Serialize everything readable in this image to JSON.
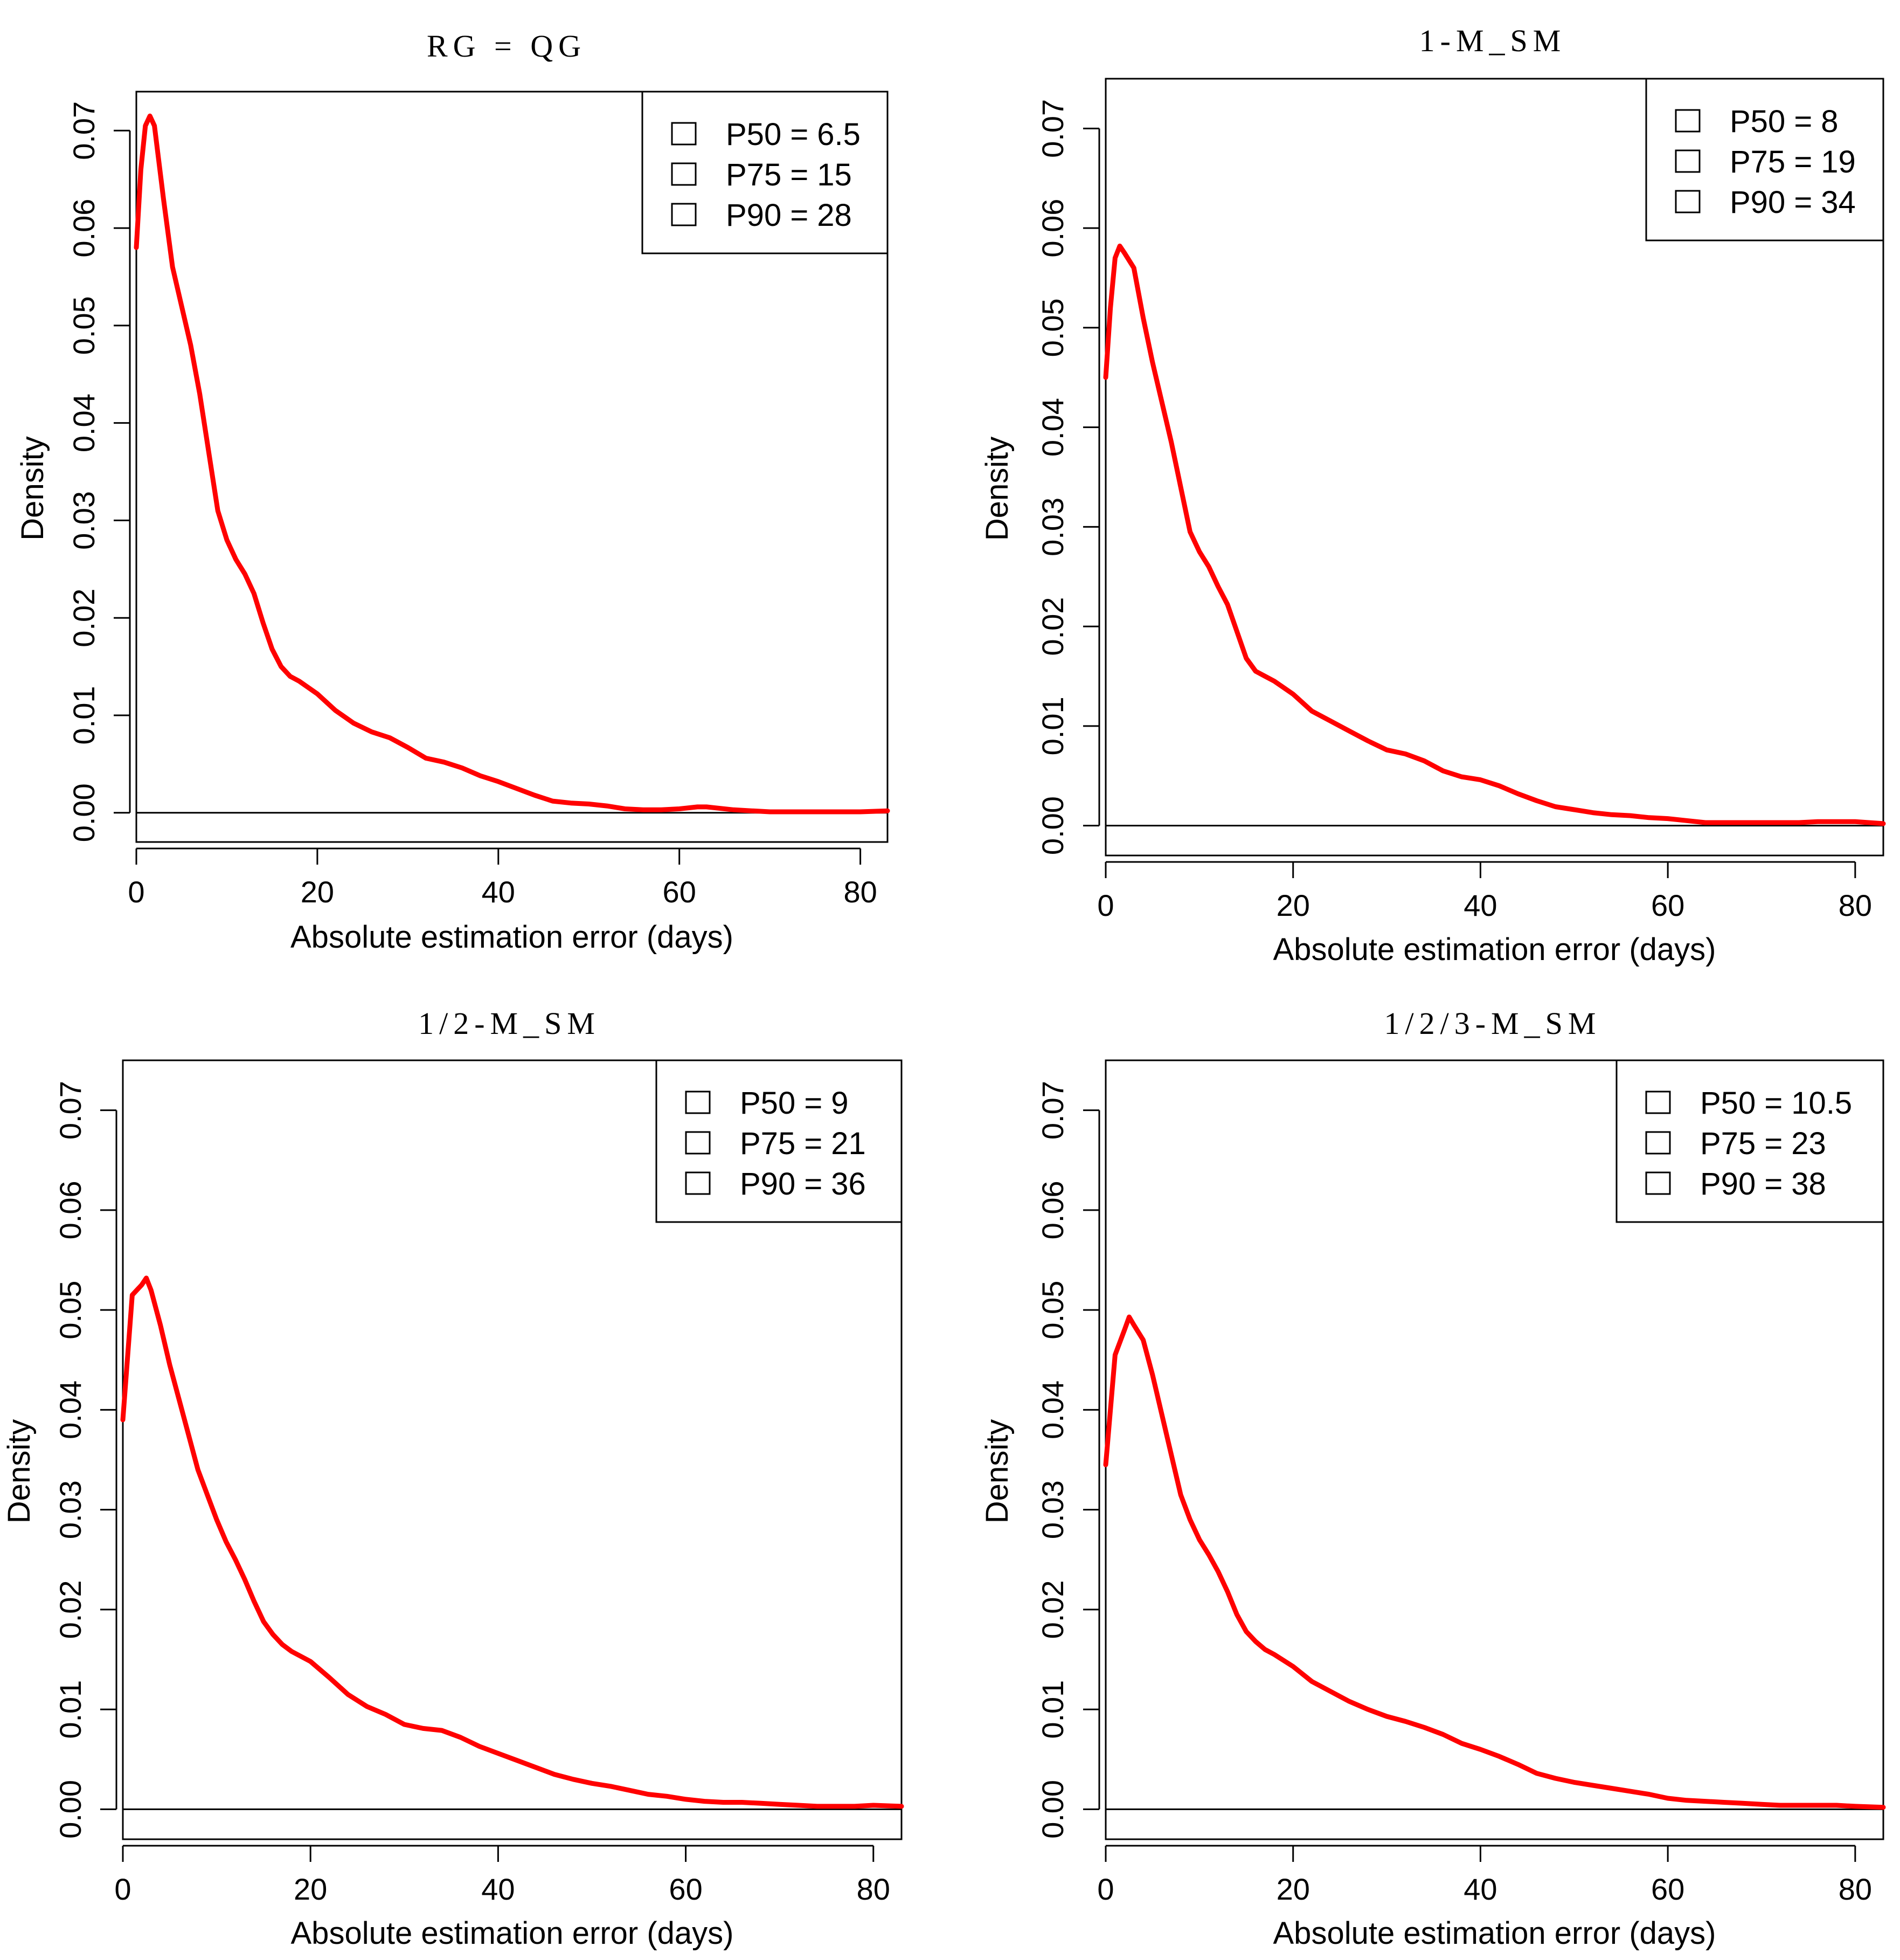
{
  "chart_data": [
    {
      "type": "line",
      "title": "RG = QG",
      "xlabel": "Absolute estimation error (days)",
      "ylabel": "Density",
      "xlim": [
        0,
        83
      ],
      "ylim": [
        -0.003,
        0.074
      ],
      "xticks": [
        "0",
        "20",
        "40",
        "60",
        "80"
      ],
      "yticks": [
        "0.00",
        "0.01",
        "0.02",
        "0.03",
        "0.04",
        "0.05",
        "0.06",
        "0.07"
      ],
      "legend_position": "top-right",
      "legend": [
        "P50 = 6.5",
        "P75 = 15",
        "P90 = 28"
      ],
      "series": [
        {
          "name": "density",
          "color": "#ff0000",
          "x": [
            0,
            0.5,
            1,
            1.5,
            2,
            3,
            4,
            5,
            6,
            7,
            8,
            9,
            10,
            11,
            12,
            13,
            14,
            15,
            16,
            17,
            18,
            20,
            22,
            24,
            26,
            28,
            30,
            32,
            34,
            36,
            38,
            40,
            42,
            44,
            46,
            48,
            50,
            52,
            54,
            56,
            58,
            60,
            62,
            63,
            64,
            66,
            68,
            70,
            72,
            74,
            76,
            78,
            80,
            83
          ],
          "y": [
            0.058,
            0.066,
            0.0705,
            0.0715,
            0.0705,
            0.063,
            0.056,
            0.052,
            0.048,
            0.043,
            0.037,
            0.031,
            0.028,
            0.026,
            0.0245,
            0.0225,
            0.0195,
            0.0168,
            0.015,
            0.014,
            0.0135,
            0.0122,
            0.0105,
            0.0092,
            0.0083,
            0.0077,
            0.0067,
            0.0056,
            0.0052,
            0.0046,
            0.0038,
            0.0032,
            0.0025,
            0.0018,
            0.0012,
            0.001,
            0.0009,
            0.0007,
            0.0004,
            0.0003,
            0.0003,
            0.0004,
            0.0006,
            0.0006,
            0.0005,
            0.0003,
            0.0002,
            0.0001,
            0.0001,
            0.0001,
            0.0001,
            0.0001,
            0.0001,
            0.0002
          ]
        }
      ]
    },
    {
      "type": "line",
      "title": "1-M_SM",
      "xlabel": "Absolute estimation error (days)",
      "ylabel": "Density",
      "xlim": [
        0,
        83
      ],
      "ylim": [
        -0.003,
        0.075
      ],
      "xticks": [
        "0",
        "20",
        "40",
        "60",
        "80"
      ],
      "yticks": [
        "0.00",
        "0.01",
        "0.02",
        "0.03",
        "0.04",
        "0.05",
        "0.06",
        "0.07"
      ],
      "legend_position": "top-right",
      "legend": [
        "P50 = 8",
        "P75 = 19",
        "P90 = 34"
      ],
      "series": [
        {
          "name": "density",
          "color": "#ff0000",
          "x": [
            0,
            0.5,
            1,
            1.5,
            2,
            3,
            4,
            5,
            6,
            7,
            8,
            9,
            10,
            11,
            12,
            13,
            14,
            15,
            16,
            17,
            18,
            20,
            22,
            24,
            26,
            28,
            30,
            32,
            34,
            36,
            38,
            40,
            42,
            44,
            46,
            48,
            50,
            52,
            54,
            56,
            58,
            60,
            62,
            64,
            66,
            68,
            70,
            72,
            74,
            76,
            78,
            80,
            83
          ],
          "y": [
            0.045,
            0.052,
            0.057,
            0.0582,
            0.0575,
            0.056,
            0.051,
            0.0465,
            0.0425,
            0.0385,
            0.034,
            0.0295,
            0.0275,
            0.026,
            0.024,
            0.0222,
            0.0195,
            0.0168,
            0.0155,
            0.015,
            0.0145,
            0.0132,
            0.0115,
            0.0105,
            0.0095,
            0.0085,
            0.0076,
            0.0072,
            0.0065,
            0.0055,
            0.0049,
            0.0046,
            0.004,
            0.0032,
            0.0025,
            0.0019,
            0.0016,
            0.0013,
            0.0011,
            0.001,
            0.0008,
            0.0007,
            0.0005,
            0.0003,
            0.0003,
            0.0003,
            0.0003,
            0.0003,
            0.0003,
            0.0004,
            0.0004,
            0.0004,
            0.0002
          ]
        }
      ]
    },
    {
      "type": "line",
      "title": "1/2-M_SM",
      "xlabel": "Absolute estimation error (days)",
      "ylabel": "Density",
      "xlim": [
        0,
        83
      ],
      "ylim": [
        -0.003,
        0.075
      ],
      "xticks": [
        "0",
        "20",
        "40",
        "60",
        "80"
      ],
      "yticks": [
        "0.00",
        "0.01",
        "0.02",
        "0.03",
        "0.04",
        "0.05",
        "0.06",
        "0.07"
      ],
      "legend_position": "top-right",
      "legend": [
        "P50 = 9",
        "P75 = 21",
        "P90 = 36"
      ],
      "series": [
        {
          "name": "density",
          "color": "#ff0000",
          "x": [
            0,
            1,
            2,
            2.5,
            3,
            4,
            5,
            6,
            7,
            8,
            9,
            10,
            11,
            12,
            13,
            14,
            15,
            16,
            17,
            18,
            20,
            22,
            24,
            26,
            28,
            30,
            32,
            34,
            36,
            38,
            40,
            42,
            44,
            46,
            48,
            50,
            52,
            54,
            56,
            58,
            60,
            62,
            64,
            66,
            68,
            70,
            72,
            74,
            76,
            78,
            80,
            83
          ],
          "y": [
            0.039,
            0.0515,
            0.0525,
            0.0532,
            0.052,
            0.0485,
            0.0445,
            0.041,
            0.0375,
            0.034,
            0.0315,
            0.029,
            0.0268,
            0.025,
            0.023,
            0.0208,
            0.0188,
            0.0175,
            0.0165,
            0.0158,
            0.0148,
            0.0132,
            0.0115,
            0.0103,
            0.0095,
            0.0085,
            0.0081,
            0.0079,
            0.0072,
            0.0063,
            0.0056,
            0.0049,
            0.0042,
            0.0035,
            0.003,
            0.0026,
            0.0023,
            0.0019,
            0.0015,
            0.0013,
            0.001,
            0.0008,
            0.0007,
            0.0007,
            0.0006,
            0.0005,
            0.0004,
            0.0003,
            0.0003,
            0.0003,
            0.0004,
            0.0003
          ]
        }
      ]
    },
    {
      "type": "line",
      "title": "1/2/3-M_SM",
      "xlabel": "Absolute estimation error (days)",
      "ylabel": "Density",
      "xlim": [
        0,
        83
      ],
      "ylim": [
        -0.003,
        0.075
      ],
      "xticks": [
        "0",
        "20",
        "40",
        "60",
        "80"
      ],
      "yticks": [
        "0.00",
        "0.01",
        "0.02",
        "0.03",
        "0.04",
        "0.05",
        "0.06",
        "0.07"
      ],
      "legend_position": "top-right",
      "legend": [
        "P50 = 10.5",
        "P75 = 23",
        "P90 = 38"
      ],
      "series": [
        {
          "name": "density",
          "color": "#ff0000",
          "x": [
            0,
            1,
            2,
            2.5,
            3,
            4,
            5,
            6,
            7,
            8,
            9,
            10,
            11,
            12,
            13,
            14,
            15,
            16,
            17,
            18,
            20,
            22,
            24,
            26,
            28,
            30,
            32,
            34,
            36,
            38,
            40,
            42,
            44,
            46,
            48,
            50,
            52,
            54,
            56,
            58,
            60,
            62,
            64,
            66,
            68,
            70,
            72,
            74,
            76,
            78,
            80,
            83
          ],
          "y": [
            0.0345,
            0.0455,
            0.048,
            0.0493,
            0.0485,
            0.047,
            0.0435,
            0.0395,
            0.0355,
            0.0315,
            0.029,
            0.027,
            0.0255,
            0.0238,
            0.0218,
            0.0195,
            0.0178,
            0.0168,
            0.016,
            0.0155,
            0.0143,
            0.0128,
            0.0118,
            0.0108,
            0.01,
            0.0093,
            0.0088,
            0.0082,
            0.0075,
            0.0066,
            0.006,
            0.0053,
            0.0045,
            0.0036,
            0.0031,
            0.0027,
            0.0024,
            0.0021,
            0.0018,
            0.0015,
            0.0011,
            0.0009,
            0.0008,
            0.0007,
            0.0006,
            0.0005,
            0.0004,
            0.0004,
            0.0004,
            0.0004,
            0.0003,
            0.0002
          ]
        }
      ]
    }
  ]
}
